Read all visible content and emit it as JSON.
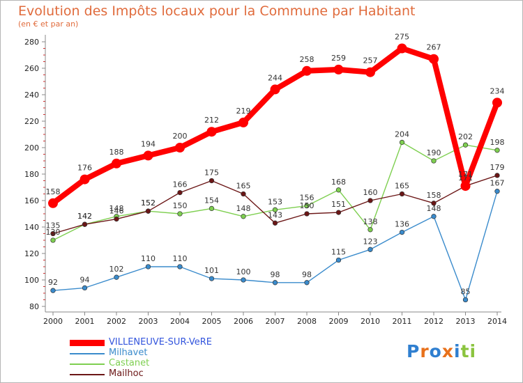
{
  "header": {
    "title": "Evolution des Impôts locaux pour la Commune par Habitant",
    "subtitle": "(en € et par an)"
  },
  "logo": {
    "text": "Proxiti"
  },
  "chart_data": {
    "type": "line",
    "title": "Evolution des Impôts locaux pour la Commune par Habitant",
    "subtitle": "(en € et par an)",
    "x": [
      "2000",
      "2001",
      "2002",
      "2003",
      "2004",
      "2005",
      "2006",
      "2007",
      "2008",
      "2009",
      "2010",
      "2011",
      "2012",
      "2013",
      "2014"
    ],
    "ylim": [
      80,
      280
    ],
    "yticks": [
      80,
      100,
      120,
      140,
      160,
      180,
      200,
      220,
      240,
      260,
      280
    ],
    "grid": false,
    "legend": "bottom-left",
    "series": [
      {
        "name": "VILLENEUVE-SUR-VeRE",
        "color": "#ff0000",
        "values": [
          158,
          176,
          188,
          194,
          200,
          212,
          219,
          244,
          258,
          259,
          257,
          275,
          267,
          171,
          234
        ]
      },
      {
        "name": "Milhavet",
        "color": "#3a8bcc",
        "values": [
          92,
          94,
          102,
          110,
          110,
          101,
          100,
          98,
          98,
          115,
          123,
          136,
          148,
          85,
          167
        ]
      },
      {
        "name": "Castanet",
        "color": "#7ecf50",
        "values": [
          130,
          142,
          148,
          152,
          150,
          154,
          148,
          153,
          156,
          168,
          138,
          204,
          190,
          202,
          198
        ]
      },
      {
        "name": "Mailhoc",
        "color": "#6b1616",
        "values": [
          135,
          142,
          146,
          152,
          166,
          175,
          165,
          143,
          150,
          151,
          160,
          165,
          158,
          171,
          179
        ]
      }
    ]
  }
}
